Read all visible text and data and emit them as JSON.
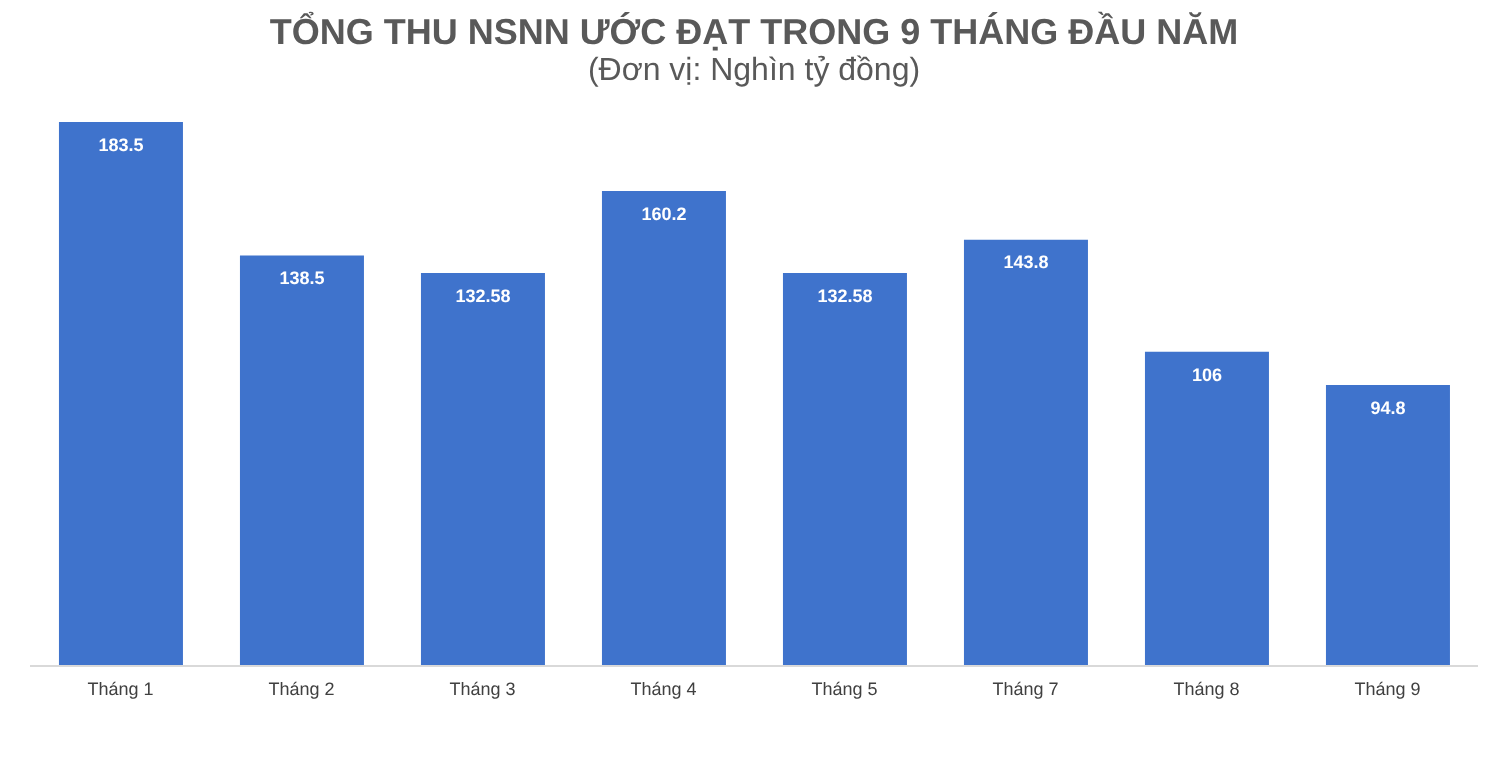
{
  "chart_data": {
    "type": "bar",
    "title": "TỔNG THU NSNN ƯỚC ĐẠT TRONG 9 THÁNG ĐẦU NĂM",
    "subtitle": "(Đơn vị: Nghìn tỷ đồng)",
    "categories": [
      "Tháng 1",
      "Tháng 2",
      "Tháng 3",
      "Tháng 4",
      "Tháng 5",
      "Tháng 7",
      "Tháng 8",
      "Tháng 9"
    ],
    "values": [
      183.5,
      138.5,
      132.58,
      160.2,
      132.58,
      143.8,
      106,
      94.8
    ],
    "color": "#3f73cc",
    "data_labels": true
  }
}
